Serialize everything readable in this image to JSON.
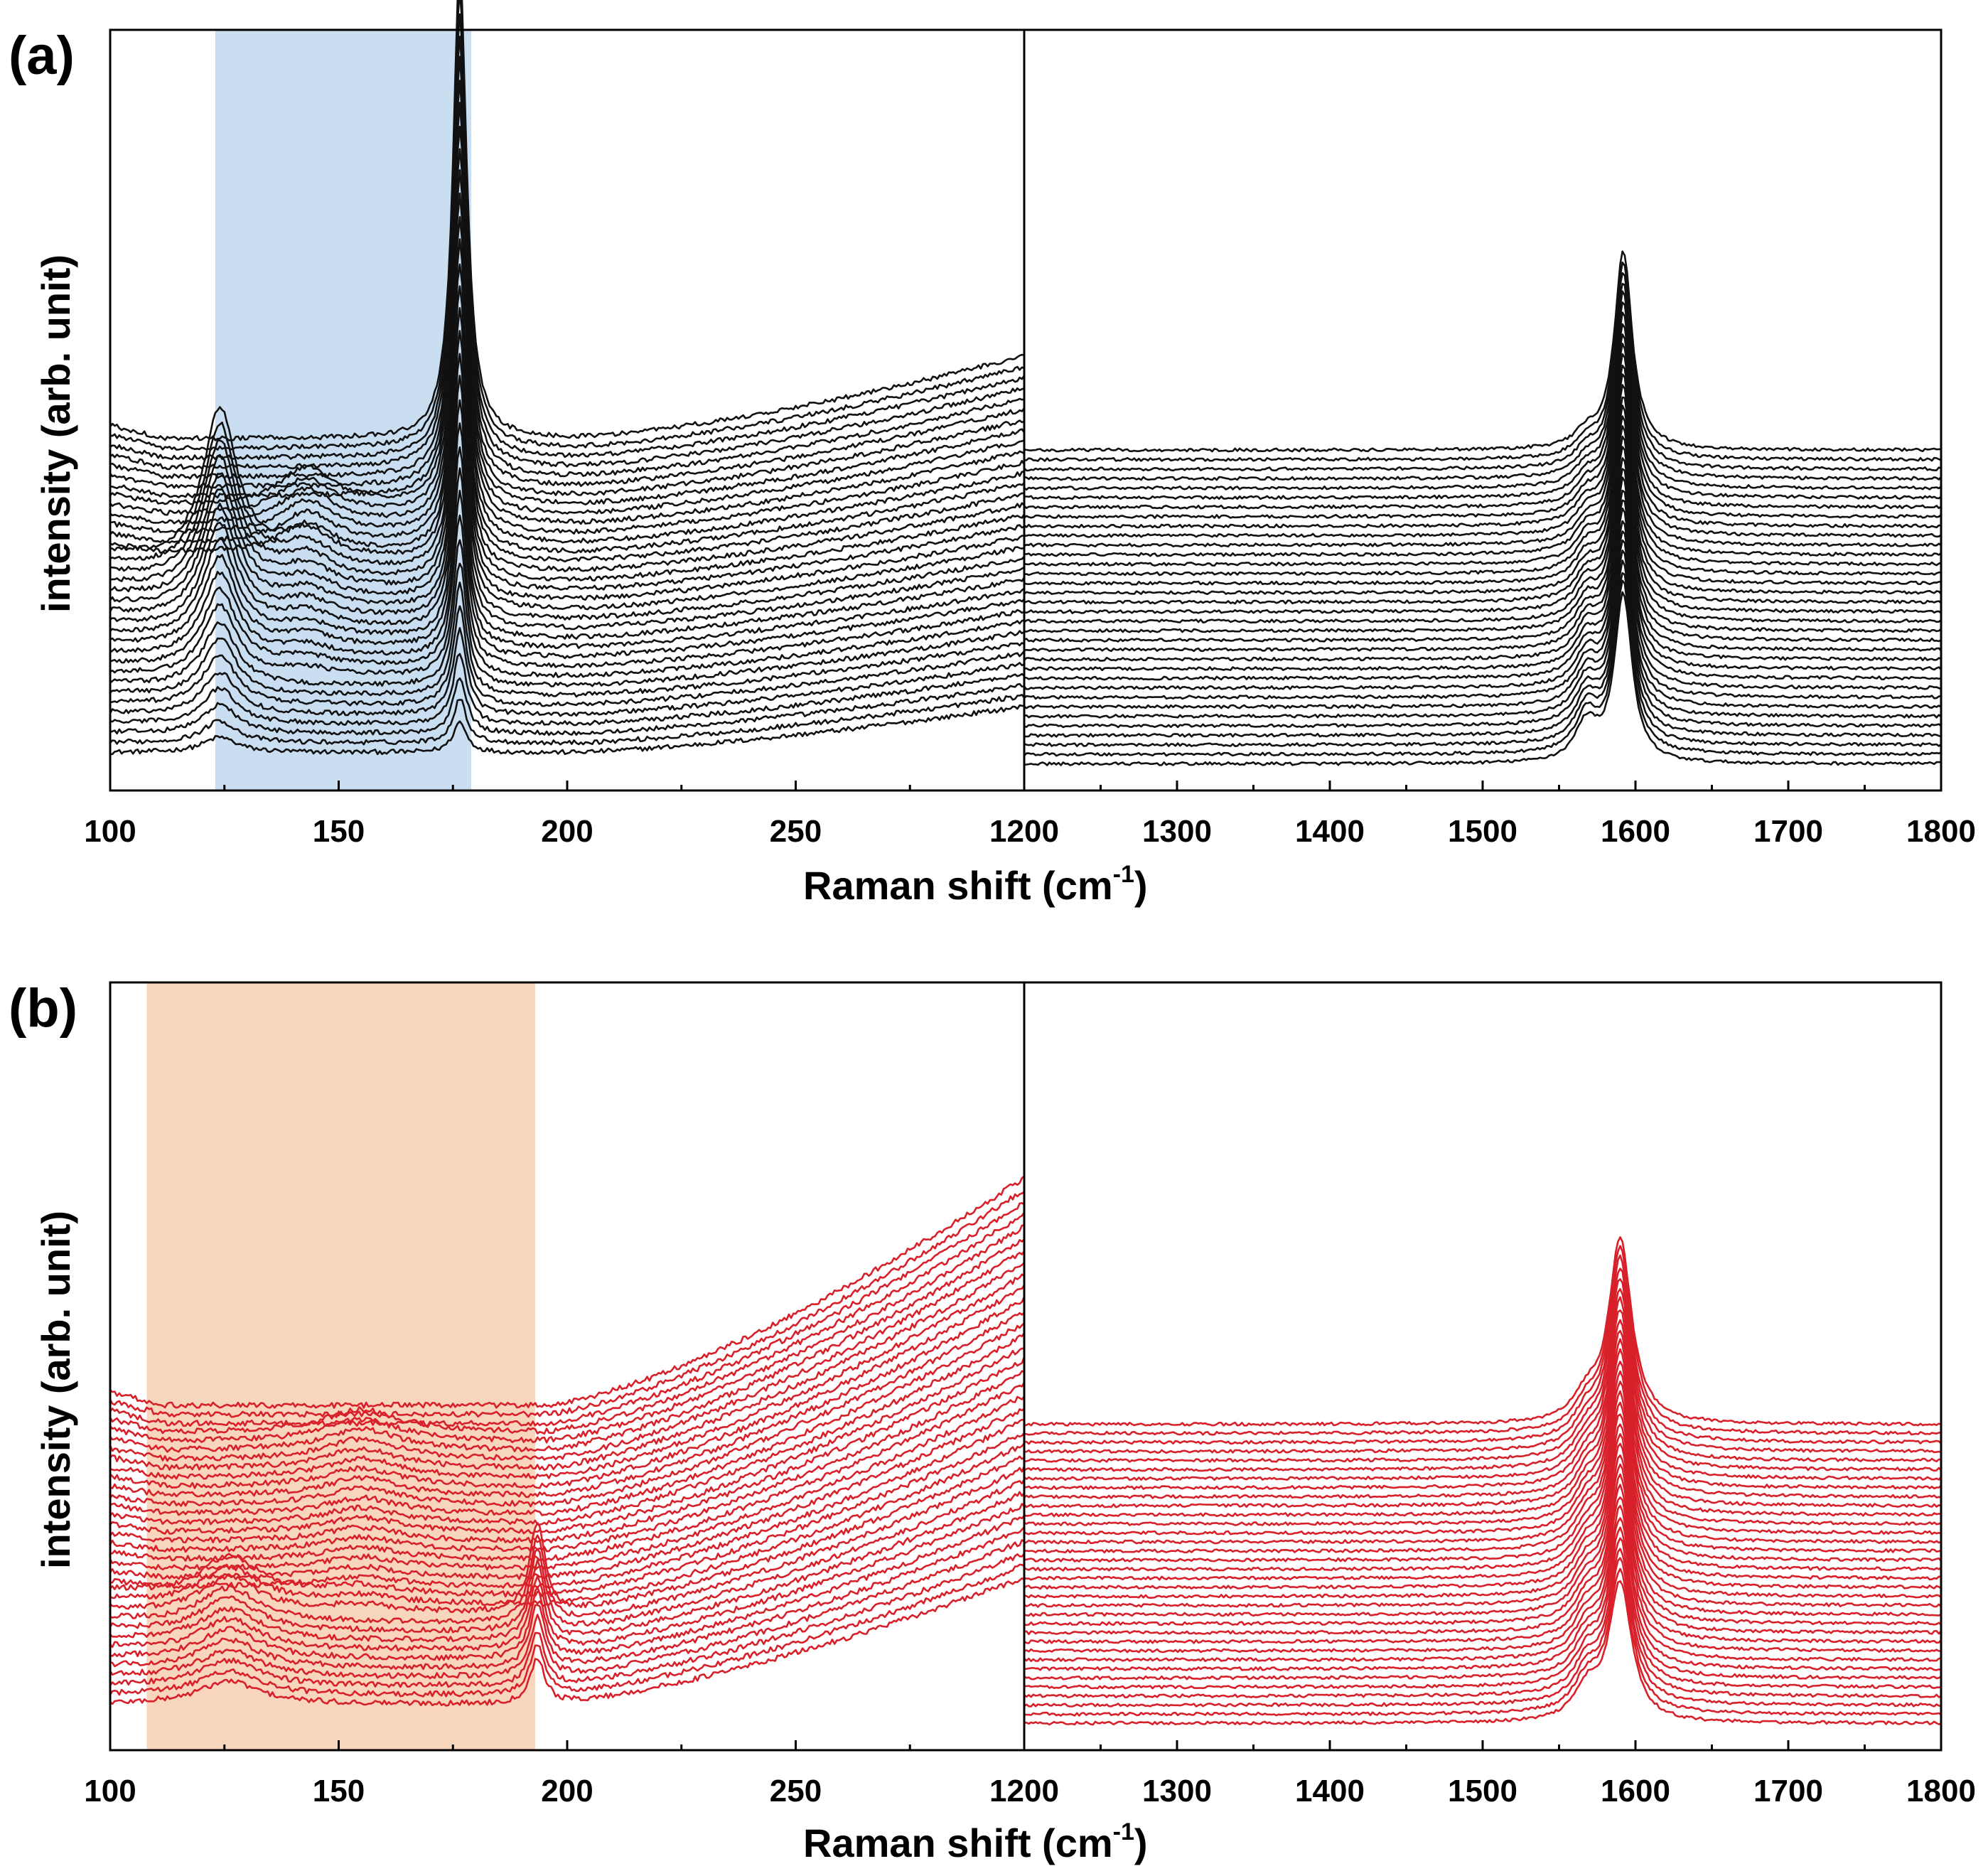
{
  "colors": {
    "black_series": "#111111",
    "red_series": "#d8202a",
    "blue_band": "#c9def0",
    "orange_band": "#f8d5bd"
  },
  "chart_data": [
    {
      "id": "a",
      "label": "(a)",
      "type": "line",
      "title": "",
      "xlabel": "Raman shift (cm",
      "xlabel_sup": "-1",
      "xlabel_close": ")",
      "ylabel": "intensity (arb. unit)",
      "grid": false,
      "series_color_key": "black_series",
      "band_color_key": "blue_band",
      "n_spectra": 34,
      "left": {
        "xlim": [
          100,
          300
        ],
        "ticks": [
          100,
          150,
          200,
          250
        ],
        "tick_labels": [
          "100",
          "150",
          "200",
          "250"
        ],
        "highlight_band": [
          123,
          179
        ],
        "baseline_offset": [
          0.05,
          0.08
        ],
        "step": 0.0125,
        "rise": 0.11,
        "rise_start": 200,
        "peaks": [
          {
            "center": 124,
            "width": 4.5,
            "amp": [
              0.02,
              0.2
            ],
            "first": 0,
            "last": 20
          },
          {
            "center": 143,
            "width": 7,
            "amp": [
              0.01,
              0.05
            ],
            "first": 8,
            "last": 26
          },
          {
            "center": 176.5,
            "width": 1.8,
            "amp": [
              0.04,
              0.62
            ],
            "first": 0,
            "last": 33
          }
        ]
      },
      "right": {
        "xlim": [
          1200,
          1800
        ],
        "ticks": [
          1200,
          1300,
          1400,
          1500,
          1600,
          1700,
          1800
        ],
        "tick_labels": [
          "1200",
          "1300",
          "1400",
          "1500",
          "1600",
          "1700",
          "1800"
        ],
        "baseline_offset": [
          0.035,
          0.035
        ],
        "step": 0.0125,
        "peaks": [
          {
            "center": 1592,
            "width": 7,
            "amp": [
              0.22,
              0.26
            ],
            "first": 0,
            "last": 33
          },
          {
            "center": 1568,
            "width": 9,
            "amp": [
              0.05,
              0.02
            ],
            "first": 0,
            "last": 33
          }
        ]
      }
    },
    {
      "id": "b",
      "label": "(b)",
      "type": "line",
      "title": "",
      "xlabel": "Raman shift (cm",
      "xlabel_sup": "-1",
      "xlabel_close": ")",
      "ylabel": "intensity (arb. unit)",
      "grid": false,
      "series_color_key": "red_series",
      "band_color_key": "orange_band",
      "n_spectra": 34,
      "left": {
        "xlim": [
          100,
          300
        ],
        "ticks": [
          100,
          150,
          200,
          250
        ],
        "tick_labels": [
          "100",
          "150",
          "200",
          "250"
        ],
        "highlight_band": [
          108,
          193
        ],
        "baseline_offset": [
          0.06,
          0.09
        ],
        "step": 0.0118,
        "rise": 0.3,
        "rise_start": 195,
        "peaks": [
          {
            "center": 193.5,
            "width": 2,
            "amp": [
              0.06,
              0.12
            ],
            "first": 0,
            "last": 10
          },
          {
            "center": 126,
            "width": 8,
            "amp": [
              0.03,
              0.05
            ],
            "first": 0,
            "last": 12
          },
          {
            "center": 155,
            "width": 10,
            "amp": [
              0.01,
              0.03
            ],
            "first": 10,
            "last": 30
          }
        ]
      },
      "right": {
        "xlim": [
          1200,
          1800
        ],
        "ticks": [
          1200,
          1300,
          1400,
          1500,
          1600,
          1700,
          1800
        ],
        "tick_labels": [
          "1200",
          "1300",
          "1400",
          "1500",
          "1600",
          "1700",
          "1800"
        ],
        "baseline_offset": [
          0.035,
          0.035
        ],
        "step": 0.0118,
        "peaks": [
          {
            "center": 1590,
            "width": 9,
            "amp": [
              0.18,
              0.24
            ],
            "first": 0,
            "last": 33
          },
          {
            "center": 1568,
            "width": 10,
            "amp": [
              0.04,
              0.03
            ],
            "first": 0,
            "last": 33
          }
        ]
      }
    }
  ]
}
